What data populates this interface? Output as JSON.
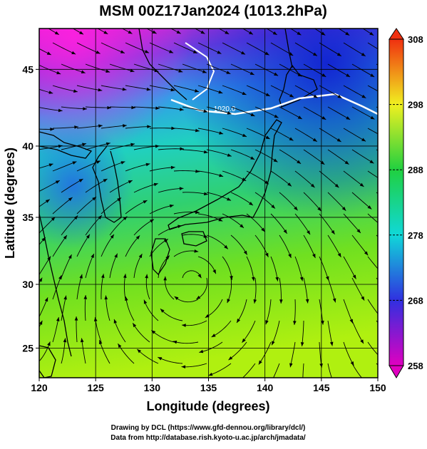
{
  "chart_data": {
    "type": "map",
    "title": "MSM 00Z17Jan2024 (1013.2hPa)",
    "x_label": "Longitude (degrees)",
    "y_label": "Latitude  (degrees)",
    "xlim": [
      120,
      150
    ],
    "ylim": [
      22.6,
      47.5
    ],
    "xticks": [
      120,
      125,
      130,
      135,
      140,
      145,
      150
    ],
    "yticks": [
      25,
      30,
      35,
      40,
      45
    ],
    "projection": "mercator",
    "grid": true,
    "colorbar": {
      "lim": [
        258,
        308
      ],
      "ticks": [
        258,
        268,
        278,
        288,
        298,
        308
      ],
      "colors": [
        "#e000c0",
        "#3030e0",
        "#10d8d8",
        "#20d040",
        "#f0f020",
        "#f03010"
      ]
    },
    "annotations": [
      "1020.0"
    ],
    "credits": [
      "Drawing by DCL (https://www.gfd-dennou.org/library/dcl/)",
      "Data from http://database.rish.kyoto-u.ac.jp/arch/jmadata/"
    ]
  }
}
